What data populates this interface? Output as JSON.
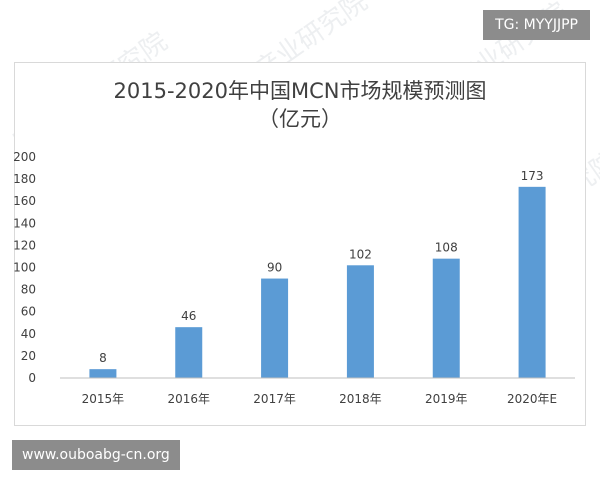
{
  "overlay": {
    "top_right_tag": "TG: MYYJJPP",
    "bottom_left_tag": "www.ouboabg-cn.org"
  },
  "watermark_text": "中商产业研究院",
  "chart_data": {
    "type": "bar",
    "title": "2015-2020年中国MCN市场规模预测图",
    "subtitle": "（亿元）",
    "categories": [
      "2015年",
      "2016年",
      "2017年",
      "2018年",
      "2019年",
      "2020年E"
    ],
    "values": [
      8,
      46,
      90,
      102,
      108,
      173
    ],
    "ylim": [
      0,
      200
    ],
    "yticks": [
      0,
      20,
      40,
      60,
      80,
      100,
      120,
      140,
      160,
      180,
      200
    ],
    "grid": false,
    "legend": "none",
    "bar_color": "#5b9bd5"
  }
}
